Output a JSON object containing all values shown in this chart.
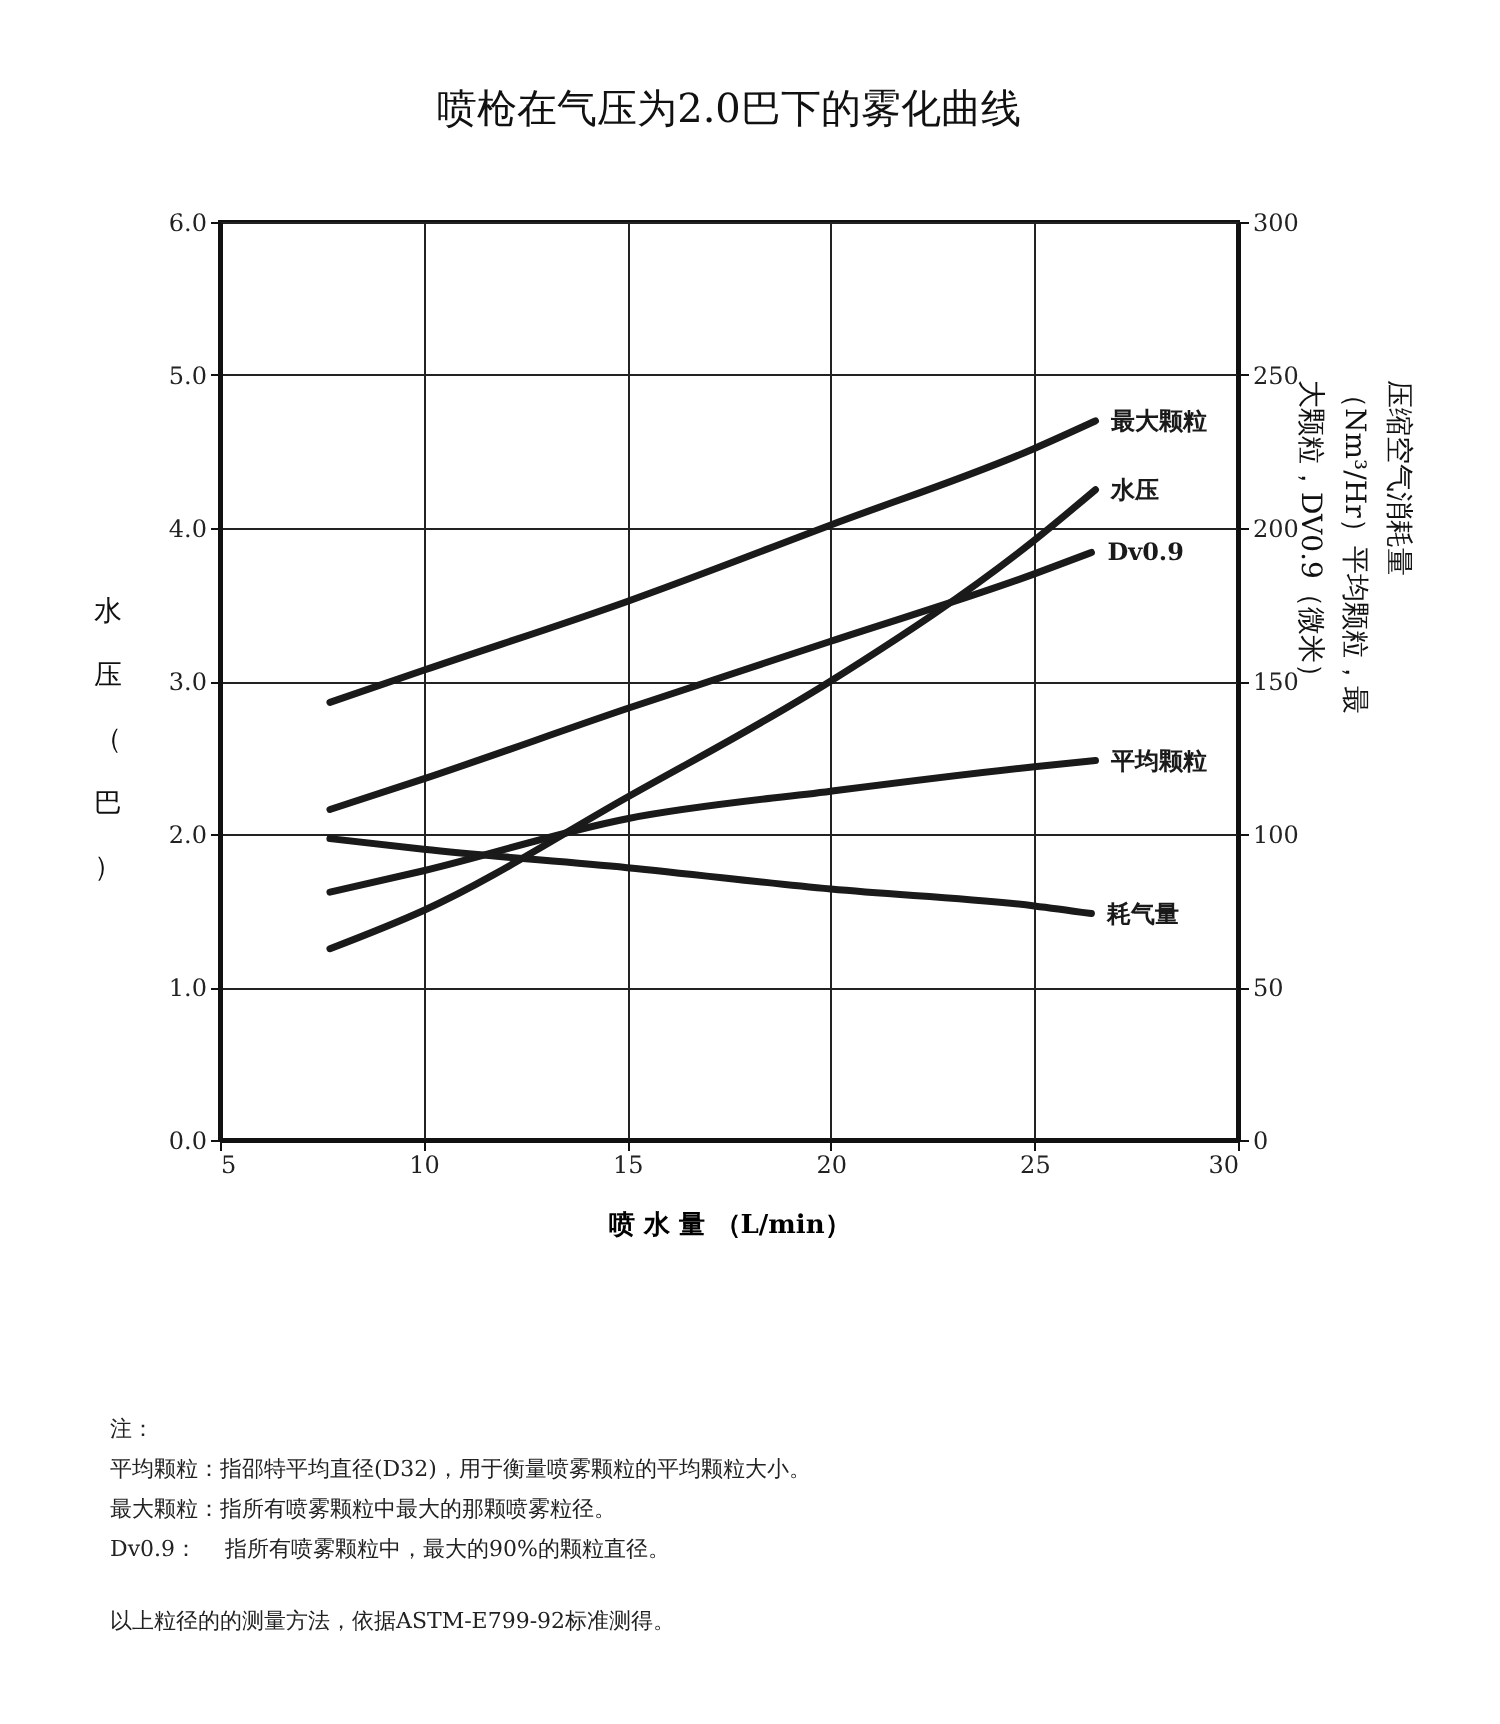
{
  "chart_data": {
    "type": "line",
    "title": "喷枪在气压为2.0巴下的雾化曲线",
    "xlabel": "喷 水 量 （L/min）",
    "ylabel": "水压（巴）",
    "y2label": "压缩空气消耗量（Nm³/Hr）平均颗粒，最大颗粒，DV0.9（微米）",
    "xlim": [
      5,
      30
    ],
    "xticks": [
      5,
      10,
      15,
      20,
      25,
      30
    ],
    "ylim": [
      0,
      6
    ],
    "yticks": [
      {
        "value": 0,
        "label": "0.0"
      },
      {
        "value": 1,
        "label": "1.0"
      },
      {
        "value": 2,
        "label": "2.0"
      },
      {
        "value": 3,
        "label": "3.0"
      },
      {
        "value": 4,
        "label": "4.0"
      },
      {
        "value": 5,
        "label": "5.0"
      },
      {
        "value": 6,
        "label": "6.0"
      }
    ],
    "y2lim": [
      0,
      300
    ],
    "y2ticks": [
      0,
      50,
      100,
      150,
      200,
      250,
      300
    ],
    "grid": true,
    "legend": false,
    "marker": "none",
    "line_style": "solid",
    "series": [
      {
        "name": "水压",
        "color": "#1a1a1a",
        "x": [
          7.7,
          10,
          15,
          20,
          25,
          26.5
        ],
        "values": [
          1.25,
          1.5,
          2.24,
          3.0,
          3.92,
          4.25
        ]
      },
      {
        "name": "最大颗粒",
        "color": "#1a1a1a",
        "axis": "y2",
        "x": [
          7.7,
          10,
          15,
          20,
          25,
          26.5
        ],
        "values": [
          143,
          153.5,
          176,
          201,
          226,
          235
        ]
      },
      {
        "name": "Dv0.9",
        "color": "#1a1a1a",
        "axis": "y2",
        "x": [
          7.7,
          10,
          15,
          20,
          25,
          26.4
        ],
        "values": [
          108,
          118,
          141,
          163,
          185,
          192
        ]
      },
      {
        "name": "平均颗粒",
        "color": "#1a1a1a",
        "axis": "y2",
        "x": [
          7.7,
          10,
          15,
          20,
          25,
          26.5
        ],
        "values": [
          81,
          88,
          105,
          114,
          122,
          124
        ]
      },
      {
        "name": "耗气量",
        "color": "#1a1a1a",
        "axis": "y2",
        "x": [
          7.7,
          10,
          15,
          20,
          25,
          26.4
        ],
        "values": [
          98.5,
          95,
          89,
          82,
          76.5,
          74
        ]
      }
    ],
    "annotations": [
      "注：",
      "平均颗粒：指邵特平均直径(D32)，用于衡量喷雾颗粒的平均颗粒大小。",
      "最大颗粒：指所有喷雾颗粒中最大的那颗喷雾粒径。",
      "Dv0.9：    指所有喷雾颗粒中，最大的90%的颗粒直径。",
      "以上粒径的的测量方法，依据ASTM-E799-92标准测得。"
    ]
  }
}
